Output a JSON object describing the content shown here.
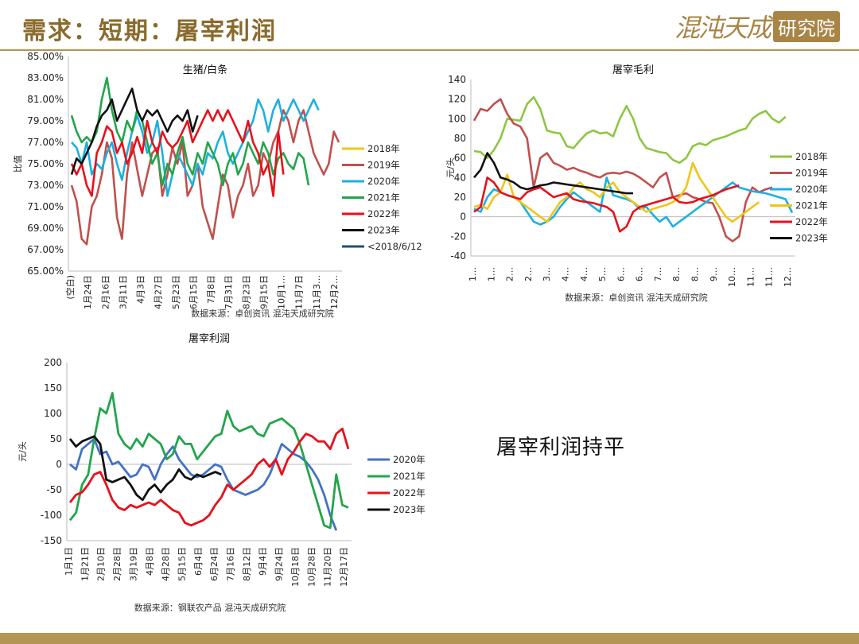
{
  "header": {
    "title": "需求：短期：屠宰利润",
    "logo_text": "混沌天成",
    "logo_box": "研究院"
  },
  "note": "屠宰利润持平",
  "charts": [
    {
      "id": "c1",
      "chart_data": {
        "type": "line",
        "title": "生猪/白条",
        "ylabel": "比值",
        "ylim": [
          65,
          85
        ],
        "yticks": [
          "65.00%",
          "67.00%",
          "69.00%",
          "71.00%",
          "73.00%",
          "75.00%",
          "77.00%",
          "79.00%",
          "81.00%",
          "83.00%",
          "85.00%"
        ],
        "xticks": [
          "(空白)",
          "1月24日",
          "2月16日",
          "3月11日",
          "4月3日",
          "4月27日",
          "5月23日",
          "6月15日",
          "7月8日",
          "7月31日",
          "8月23日",
          "9月15日",
          "10月1…",
          "11月7日",
          "11月3…",
          "12月2…"
        ],
        "source": "数据来源：卓创资讯 混沌天成研究院",
        "series": [
          {
            "name": "2018年",
            "color": "#f0c419",
            "values": []
          },
          {
            "name": "2019年",
            "color": "#c0504d",
            "values": [
              73,
              71.5,
              68,
              67.5,
              71,
              72,
              74,
              77,
              75.5,
              70,
              68,
              74,
              77,
              74.5,
              72,
              74,
              76,
              76.5,
              72,
              74,
              76.5,
              75,
              77,
              72,
              73,
              75,
              71,
              69.5,
              68,
              71,
              74,
              73,
              70,
              72,
              73,
              75,
              72,
              73,
              76,
              75,
              77,
              78,
              80,
              79,
              77,
              79,
              80,
              78,
              76,
              75,
              74,
              75,
              78,
              77
            ]
          },
          {
            "name": "2020年",
            "color": "#1cb0e0",
            "values": [
              77,
              76.5,
              75,
              77,
              74,
              75,
              74.5,
              76,
              77,
              75,
              73.5,
              76,
              78,
              79.5,
              78,
              76,
              77,
              79,
              76,
              72,
              74,
              76,
              75,
              74,
              73,
              75,
              74,
              76,
              75.5,
              77,
              78,
              76,
              75,
              76,
              77,
              78,
              79,
              81,
              80,
              78,
              80,
              81,
              79,
              80,
              81,
              80,
              79,
              80,
              81,
              80
            ]
          },
          {
            "name": "2021年",
            "color": "#22a54b",
            "values": [
              79.5,
              78,
              77,
              77.5,
              77,
              78,
              81,
              83,
              80,
              78,
              77,
              79,
              78,
              80,
              79,
              77,
              75,
              76,
              73,
              75,
              74,
              76,
              77.5,
              75,
              74,
              76,
              75,
              77,
              76,
              75,
              73,
              75,
              76,
              74,
              75,
              77,
              76,
              75,
              77,
              76,
              74,
              75.5,
              76,
              75,
              74.5,
              76,
              75.5,
              73
            ]
          },
          {
            "name": "2022年",
            "color": "#e8101a",
            "values": [
              75,
              74,
              75,
              73,
              72,
              76,
              77,
              78.5,
              78,
              76,
              77,
              75,
              76,
              77.5,
              76,
              79,
              77,
              76,
              78,
              77,
              76.5,
              77,
              78,
              79,
              77,
              78,
              79,
              80,
              79,
              80,
              79,
              80,
              79,
              78,
              77,
              79,
              77,
              76,
              74,
              75,
              72,
              78,
              74
            ]
          },
          {
            "name": "2023年",
            "color": "#111111",
            "values": [
              74,
              75.5,
              75,
              76,
              77,
              78.5,
              79.5,
              80,
              81,
              79,
              80,
              81,
              82,
              80,
              79,
              80,
              79.5,
              80,
              79,
              78,
              79,
              79.5,
              79,
              80,
              78,
              79.5
            ]
          },
          {
            "name": "<2018/6/12",
            "color": "#1f4e79",
            "values": []
          }
        ]
      }
    },
    {
      "id": "c2",
      "chart_data": {
        "type": "line",
        "title": "屠宰毛利",
        "ylabel": "元/头",
        "ylim": [
          -40,
          140
        ],
        "yticks": [
          "-40",
          "-20",
          "0",
          "20",
          "40",
          "60",
          "80",
          "100",
          "120",
          "140"
        ],
        "xticks": [
          "1…",
          "1…",
          "2…",
          "2…",
          "3…",
          "4…",
          "4…",
          "5…",
          "6…",
          "6…",
          "7…",
          "8…",
          "8…",
          "9…",
          "10…",
          "11…",
          "11…",
          "12…"
        ],
        "source": "数据来源：卓创资讯 混沌天成研究院",
        "series": [
          {
            "name": "2018年",
            "color": "#8dc641",
            "values": [
              67,
              66,
              60,
              68,
              80,
              100,
              99,
              98,
              115,
              122,
              110,
              88,
              86,
              85,
              72,
              70,
              78,
              85,
              88,
              85,
              86,
              82,
              100,
              113,
              100,
              80,
              70,
              68,
              66,
              65,
              58,
              55,
              60,
              72,
              75,
              73,
              78,
              80,
              82,
              85,
              88,
              90,
              100,
              105,
              108,
              100,
              96,
              102
            ]
          },
          {
            "name": "2019年",
            "color": "#c0504d",
            "values": [
              98,
              110,
              108,
              115,
              120,
              105,
              95,
              92,
              80,
              30,
              60,
              65,
              55,
              52,
              48,
              50,
              47,
              45,
              42,
              40,
              44,
              45,
              44,
              46,
              44,
              40,
              35,
              30,
              40,
              45,
              20,
              22,
              24,
              20,
              18,
              15,
              14,
              0,
              -20,
              -25,
              -20,
              15,
              30,
              25,
              28,
              30
            ]
          },
          {
            "name": "2020年",
            "color": "#1cb0e0",
            "values": [
              8,
              5,
              20,
              28,
              25,
              22,
              20,
              15,
              5,
              -5,
              -8,
              -5,
              0,
              10,
              18,
              25,
              20,
              15,
              10,
              5,
              40,
              22,
              20,
              18,
              15,
              8,
              10,
              2,
              -5,
              0,
              -10,
              -5,
              0,
              5,
              10,
              15,
              20,
              25,
              30,
              35,
              30,
              28,
              26,
              25,
              24,
              22,
              20,
              18,
              4
            ]
          },
          {
            "name": "2021年",
            "color": "#f0c419",
            "values": [
              10,
              12,
              8,
              20,
              25,
              43,
              20,
              15,
              10,
              5,
              0,
              -5,
              5,
              15,
              20,
              30,
              35,
              28,
              25,
              20,
              30,
              35,
              25,
              20,
              15,
              10,
              5,
              8,
              10,
              12,
              15,
              20,
              30,
              55,
              40,
              30,
              20,
              10,
              0,
              -5,
              0,
              5,
              10,
              15
            ]
          },
          {
            "name": "2022年",
            "color": "#e8101a",
            "values": [
              5,
              10,
              40,
              35,
              25,
              22,
              20,
              18,
              25,
              28,
              30,
              25,
              20,
              22,
              24,
              18,
              16,
              15,
              14,
              12,
              10,
              5,
              -15,
              -10,
              5,
              10,
              12,
              14,
              16,
              18,
              20,
              15,
              14,
              15,
              18,
              20,
              22,
              25,
              28,
              30,
              32
            ]
          },
          {
            "name": "2023年",
            "color": "#111111",
            "values": [
              40,
              48,
              65,
              55,
              40,
              38,
              35,
              30,
              28,
              30,
              32,
              33,
              35,
              34,
              33,
              32,
              31,
              30,
              29,
              28,
              27,
              26,
              25,
              24,
              24
            ]
          }
        ]
      }
    },
    {
      "id": "c3",
      "chart_data": {
        "type": "line",
        "title": "屠宰利润",
        "ylabel": "元/头",
        "ylim": [
          -150,
          200
        ],
        "yticks": [
          "-150",
          "-100",
          "-50",
          "0",
          "50",
          "100",
          "150",
          "200"
        ],
        "xticks": [
          "1月1日",
          "1月21日",
          "2月10日",
          "2月28日",
          "3月19日",
          "4月8日",
          "4月28日",
          "5月15日",
          "6月4日",
          "6月24日",
          "7月16日",
          "8月12日",
          "9月4日",
          "9月24日",
          "10月18日",
          "10月28日",
          "11月20日",
          "12月17日"
        ],
        "source": "数据来源：钢联农产品 混沌天成研究院",
        "series": [
          {
            "name": "2020年",
            "color": "#4472c4",
            "values": [
              0,
              -10,
              30,
              40,
              50,
              20,
              25,
              0,
              5,
              -10,
              -25,
              -20,
              0,
              -5,
              -30,
              0,
              20,
              35,
              10,
              -5,
              -20,
              -25,
              -20,
              -10,
              0,
              -5,
              -30,
              -50,
              -55,
              -60,
              -55,
              -50,
              -40,
              -20,
              10,
              40,
              30,
              20,
              15,
              5,
              -10,
              -30,
              -60,
              -100,
              -130
            ]
          },
          {
            "name": "2021年",
            "color": "#22a54b",
            "values": [
              -110,
              -95,
              -40,
              -20,
              50,
              110,
              100,
              140,
              60,
              40,
              30,
              50,
              35,
              60,
              50,
              40,
              10,
              20,
              55,
              40,
              40,
              10,
              25,
              40,
              55,
              60,
              105,
              75,
              65,
              70,
              75,
              60,
              55,
              80,
              85,
              90,
              80,
              70,
              40,
              0,
              -40,
              -80,
              -120,
              -125,
              -20,
              -80,
              -85
            ]
          },
          {
            "name": "2022年",
            "color": "#e8101a",
            "values": [
              -75,
              -60,
              -55,
              -40,
              -20,
              -15,
              -40,
              -70,
              -85,
              -90,
              -80,
              -85,
              -80,
              -75,
              -80,
              -70,
              -80,
              -90,
              -95,
              -115,
              -120,
              -115,
              -110,
              -100,
              -80,
              -65,
              -40,
              -50,
              -40,
              -30,
              -20,
              0,
              10,
              -5,
              10,
              -20,
              10,
              25,
              45,
              60,
              55,
              45,
              45,
              30,
              60,
              70,
              30
            ]
          },
          {
            "name": "2023年",
            "color": "#111111",
            "values": [
              50,
              35,
              45,
              50,
              55,
              40,
              -30,
              -35,
              -30,
              -25,
              -40,
              -60,
              -70,
              -50,
              -40,
              -55,
              -40,
              -30,
              -10,
              -25,
              -30,
              -20,
              -25,
              -20,
              -15,
              -20
            ]
          }
        ]
      }
    }
  ]
}
